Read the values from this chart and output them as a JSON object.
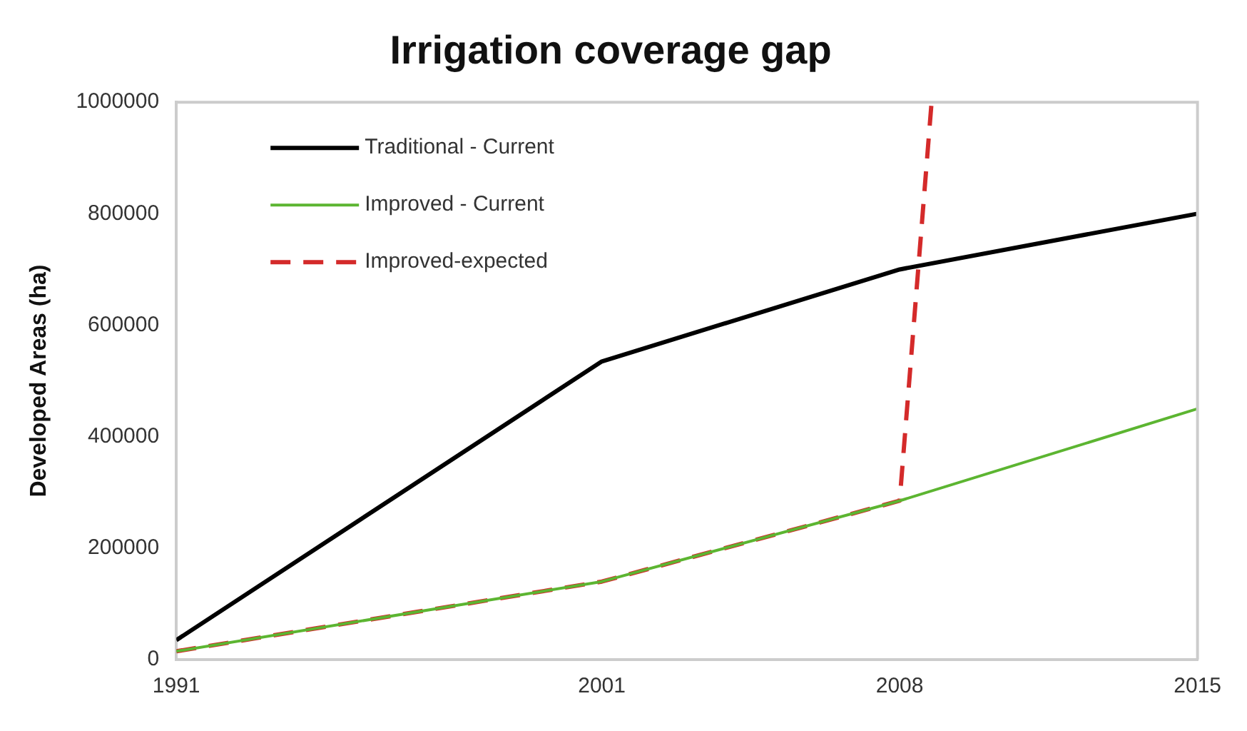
{
  "chart_data": {
    "type": "line",
    "title": "Irrigation coverage gap",
    "ylabel": "Developed Areas (ha)",
    "xlim": [
      1991,
      2015
    ],
    "xticks": [
      1991,
      2001,
      2008,
      2015
    ],
    "ylim": [
      0,
      1000000
    ],
    "yticks": [
      0,
      200000,
      400000,
      600000,
      800000,
      1000000
    ],
    "x": [
      1991,
      2001,
      2008,
      2015
    ],
    "series": [
      {
        "name": "Traditional - Current",
        "color": "#000000",
        "values": [
          35000,
          535000,
          700000,
          800000
        ]
      },
      {
        "name": "Improved - Current",
        "color": "#5cb531",
        "values": [
          15000,
          140000,
          285000,
          450000
        ]
      },
      {
        "name": "Improved-expected",
        "color": "#d42a2a",
        "line_style": "dashed",
        "x": [
          1991,
          2001,
          2008,
          2008.75
        ],
        "values": [
          15000,
          140000,
          285000,
          1000000
        ]
      }
    ],
    "grid": false,
    "legend": "top left",
    "marker": "none"
  }
}
